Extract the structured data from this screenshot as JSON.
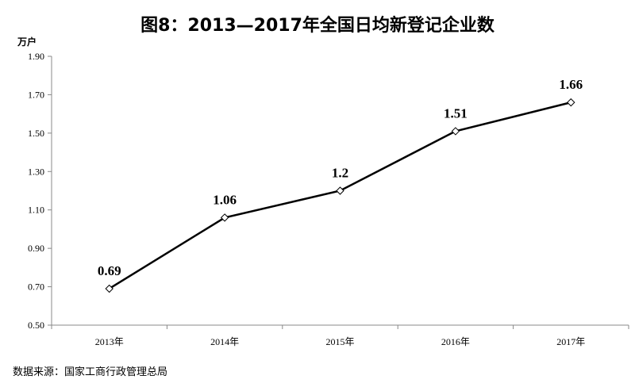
{
  "title": "图8：2013—2017年全国日均新登记企业数",
  "unit_label": "万户",
  "source": "数据来源：国家工商行政管理总局",
  "chart_data": {
    "type": "line",
    "title": "图8：2013—2017年全国日均新登记企业数",
    "ylabel": "万户",
    "xlabel": "",
    "categories": [
      "2013年",
      "2014年",
      "2015年",
      "2016年",
      "2017年"
    ],
    "values": [
      0.69,
      1.06,
      1.2,
      1.51,
      1.66
    ],
    "data_labels": [
      "0.69",
      "1.06",
      "1.2",
      "1.51",
      "1.66"
    ],
    "ylim": [
      0.5,
      1.9
    ],
    "yticks": [
      "0.50",
      "0.70",
      "0.90",
      "1.10",
      "1.30",
      "1.50",
      "1.70",
      "1.90"
    ],
    "grid": false,
    "legend": "none",
    "line_color": "#000000",
    "marker": "diamond-open"
  }
}
